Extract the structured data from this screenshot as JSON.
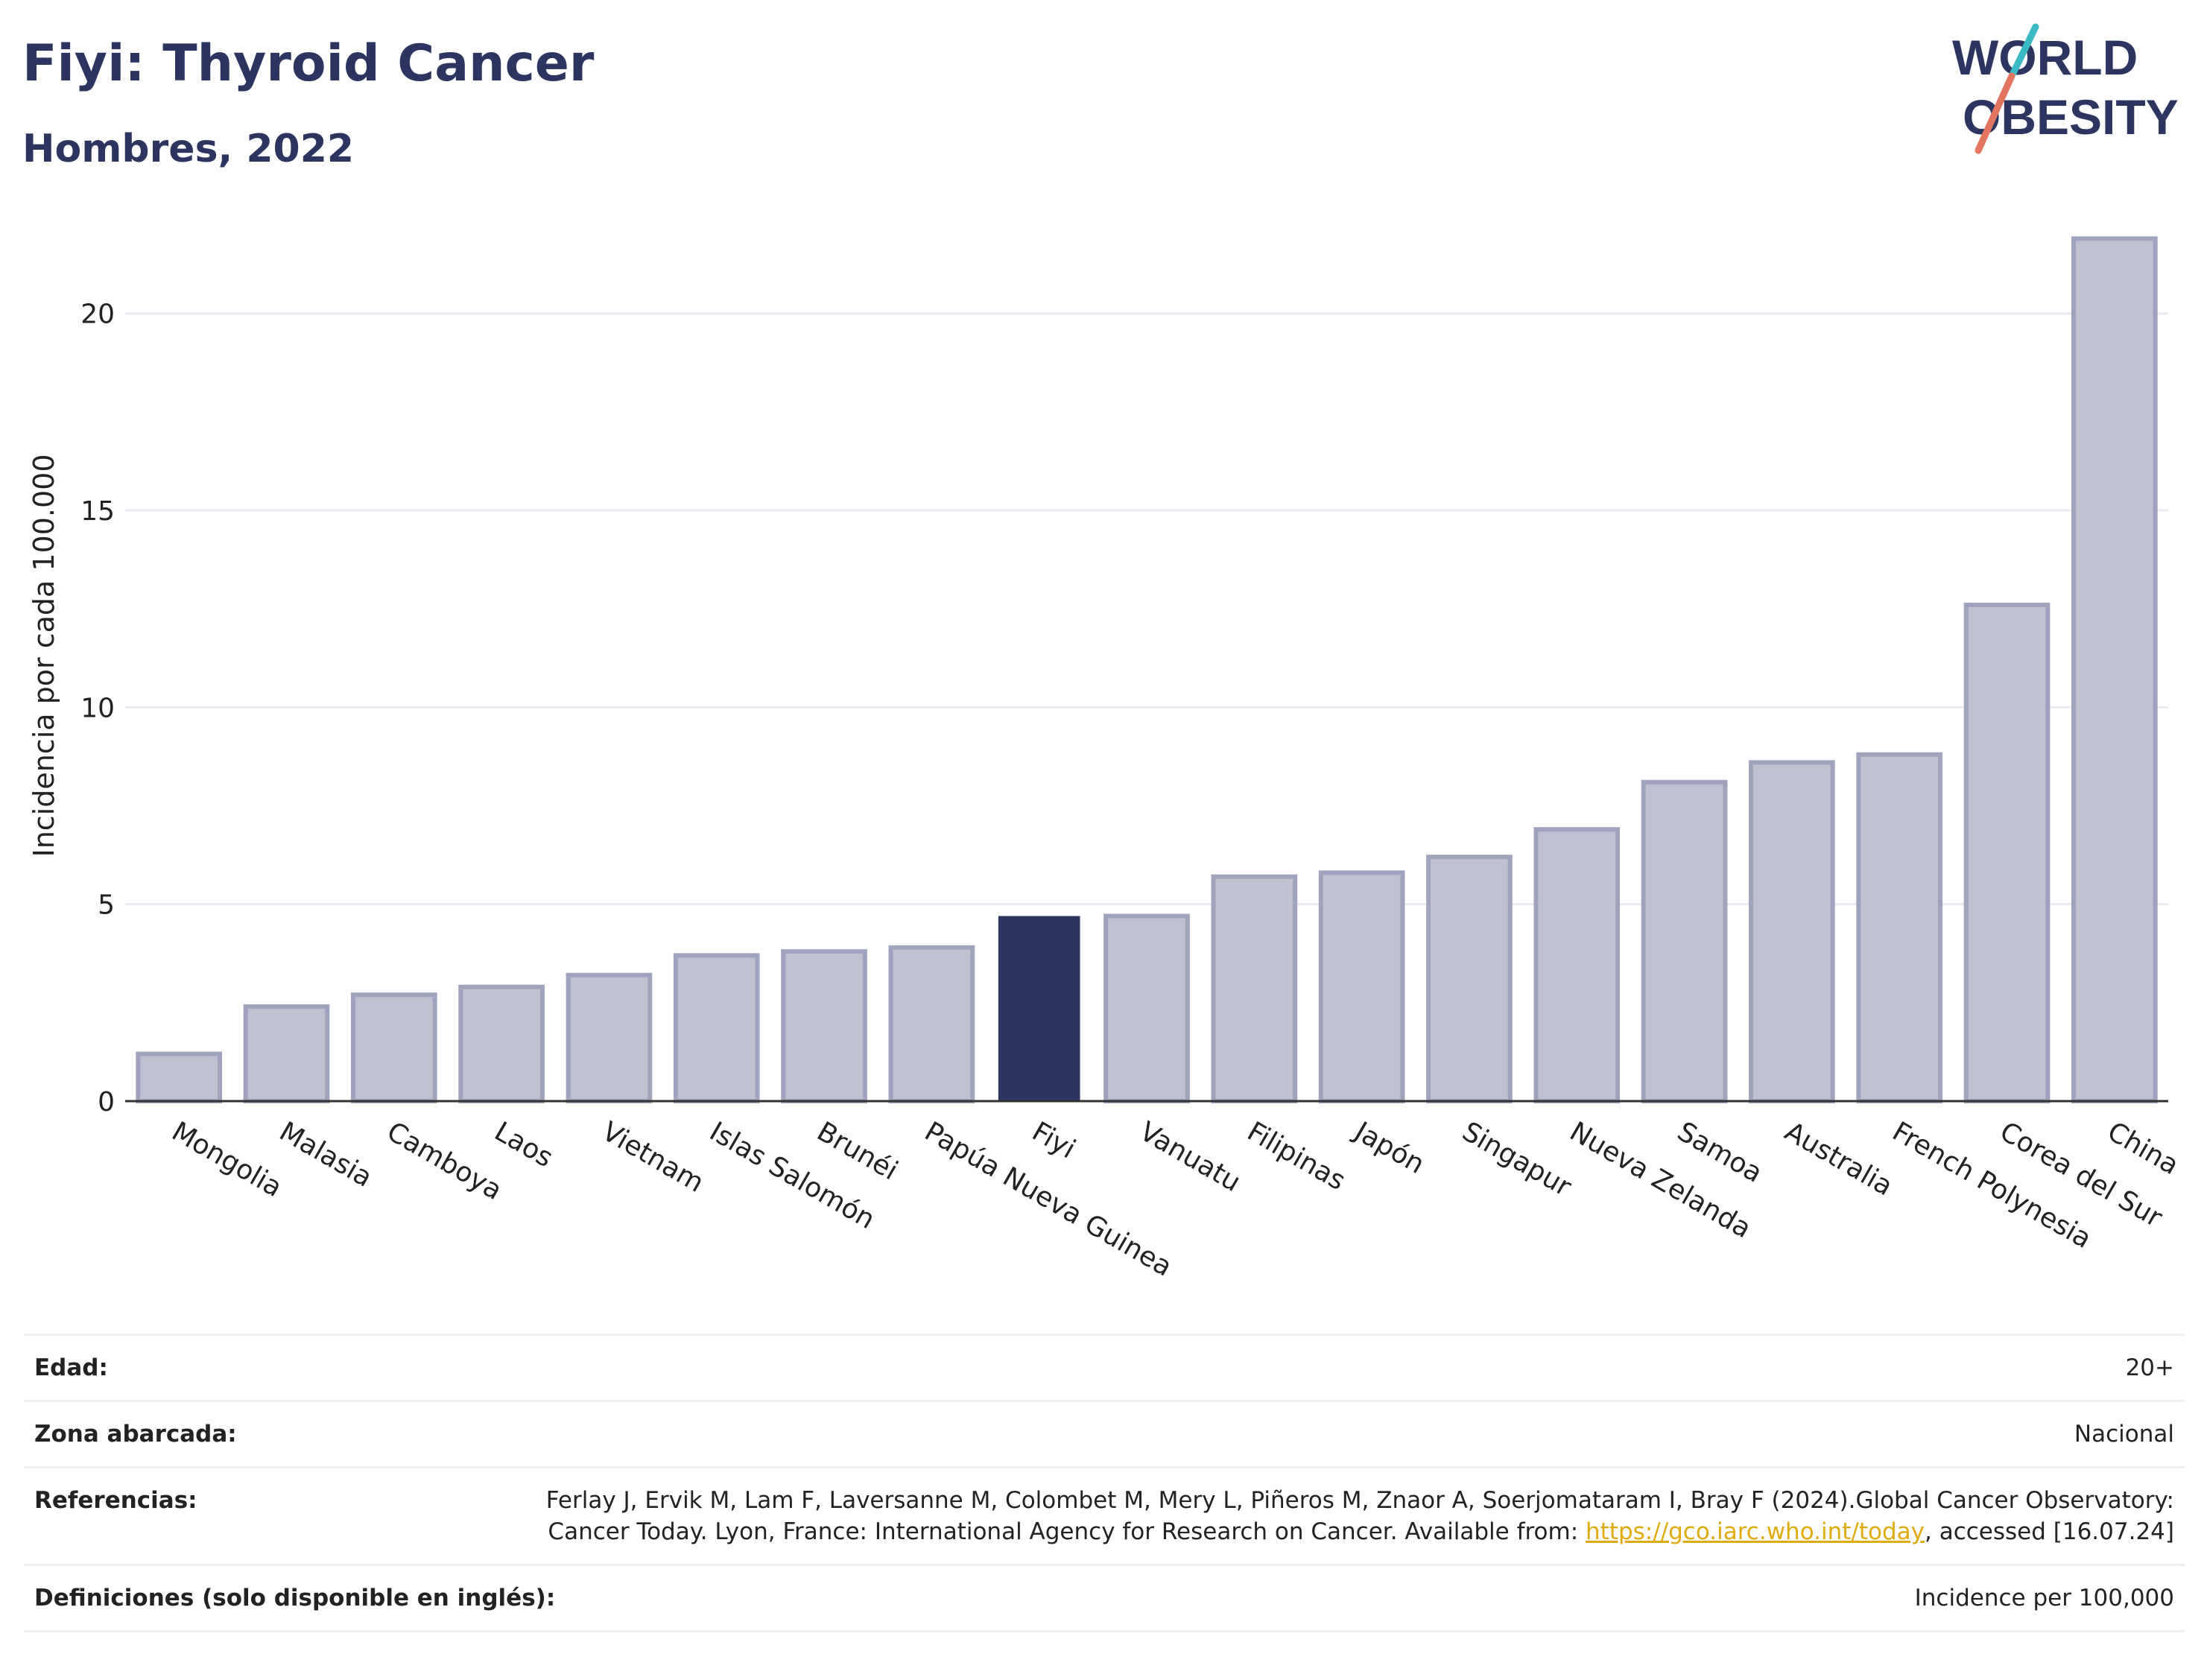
{
  "header": {
    "title": "Fiyi: Thyroid Cancer",
    "subtitle": "Hombres, 2022",
    "logo_line1": "WORLD",
    "logo_line2": "OBESITY"
  },
  "chart_data": {
    "type": "bar",
    "categories": [
      "Mongolia",
      "Malasia",
      "Camboya",
      "Laos",
      "Vietnam",
      "Islas Salomón",
      "Brunéi",
      "Papúa Nueva Guinea",
      "Fiyi",
      "Vanuatu",
      "Filipinas",
      "Japón",
      "Singapur",
      "Nueva Zelanda",
      "Samoa",
      "Australia",
      "French Polynesia",
      "Corea del Sur",
      "China"
    ],
    "values": [
      1.2,
      2.4,
      2.7,
      2.9,
      3.2,
      3.7,
      3.8,
      3.9,
      4.7,
      4.7,
      5.7,
      5.8,
      6.2,
      6.9,
      8.1,
      8.6,
      8.8,
      12.6,
      21.9
    ],
    "highlight": "Fiyi",
    "title": "Fiyi: Thyroid Cancer",
    "subtitle": "Hombres, 2022",
    "xlabel": "",
    "ylabel": "Incidencia por cada 100.000",
    "yticks": [
      0,
      5,
      10,
      15,
      20
    ],
    "ylim": [
      0,
      22.7
    ],
    "grid": true,
    "colors": {
      "bar": "#bec1d0",
      "bar_edge": "#9fa3bd",
      "highlight": "#2b3560",
      "grid": "#e8ecf2",
      "axis": "#333333"
    }
  },
  "meta": {
    "rows": [
      {
        "label": "Edad:",
        "value": "20+"
      },
      {
        "label": "Zona abarcada:",
        "value": "Nacional"
      },
      {
        "label": "Referencias:",
        "value_before": "Ferlay J, Ervik M, Lam F, Laversanne M, Colombet M, Mery L, Piñeros M, Znaor A, Soerjomataram I, Bray F (2024).Global Cancer Observatory: Cancer Today. Lyon, France: International Agency for Research on Cancer. Available from: ",
        "link": "https://gco.iarc.who.int/today",
        "value_after": ", accessed [16.07.24]"
      },
      {
        "label": "Definiciones (solo disponible en inglés):",
        "value": "Incidence per 100,000"
      }
    ]
  }
}
